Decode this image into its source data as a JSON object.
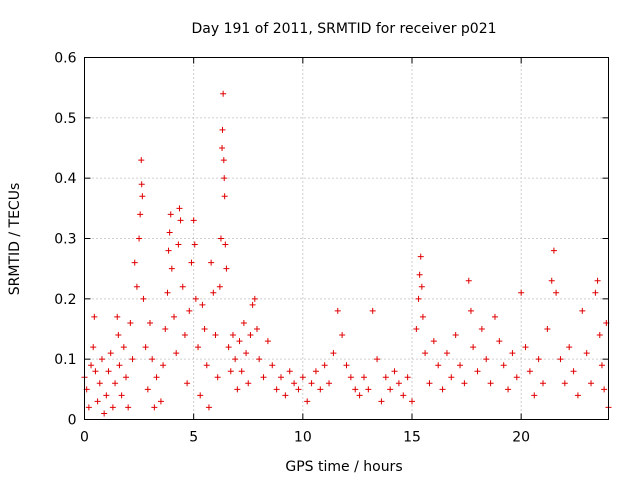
{
  "chart_data": {
    "type": "scatter",
    "title": "Day 191 of 2011, SRMTID for receiver p021",
    "xlabel": "GPS time / hours",
    "ylabel": "SRMTID / TECUs",
    "xlim": [
      0,
      24
    ],
    "ylim": [
      0,
      0.6
    ],
    "xticks": [
      0,
      5,
      10,
      15,
      20
    ],
    "yticks": [
      0,
      0.1,
      0.2,
      0.3,
      0.4,
      0.5,
      0.6
    ],
    "grid": true,
    "marker": "plus",
    "color": "#e00000",
    "series": [
      {
        "name": "SRMTID",
        "points": [
          [
            0.0,
            0.07
          ],
          [
            0.1,
            0.05
          ],
          [
            0.2,
            0.02
          ],
          [
            0.3,
            0.09
          ],
          [
            0.4,
            0.12
          ],
          [
            0.45,
            0.17
          ],
          [
            0.5,
            0.08
          ],
          [
            0.6,
            0.03
          ],
          [
            0.7,
            0.06
          ],
          [
            0.8,
            0.1
          ],
          [
            0.9,
            0.01
          ],
          [
            1.0,
            0.04
          ],
          [
            1.1,
            0.08
          ],
          [
            1.2,
            0.11
          ],
          [
            1.3,
            0.02
          ],
          [
            1.4,
            0.06
          ],
          [
            1.5,
            0.17
          ],
          [
            1.55,
            0.14
          ],
          [
            1.6,
            0.09
          ],
          [
            1.7,
            0.04
          ],
          [
            1.8,
            0.12
          ],
          [
            1.9,
            0.07
          ],
          [
            2.0,
            0.02
          ],
          [
            2.1,
            0.16
          ],
          [
            2.2,
            0.1
          ],
          [
            2.3,
            0.26
          ],
          [
            2.4,
            0.22
          ],
          [
            2.5,
            0.3
          ],
          [
            2.55,
            0.34
          ],
          [
            2.6,
            0.43
          ],
          [
            2.62,
            0.39
          ],
          [
            2.65,
            0.37
          ],
          [
            2.7,
            0.2
          ],
          [
            2.8,
            0.12
          ],
          [
            2.9,
            0.05
          ],
          [
            3.0,
            0.16
          ],
          [
            3.1,
            0.1
          ],
          [
            3.2,
            0.02
          ],
          [
            3.3,
            0.07
          ],
          [
            3.5,
            0.03
          ],
          [
            3.6,
            0.09
          ],
          [
            3.7,
            0.15
          ],
          [
            3.8,
            0.21
          ],
          [
            3.85,
            0.28
          ],
          [
            3.9,
            0.31
          ],
          [
            3.95,
            0.34
          ],
          [
            4.0,
            0.25
          ],
          [
            4.1,
            0.17
          ],
          [
            4.2,
            0.11
          ],
          [
            4.3,
            0.29
          ],
          [
            4.35,
            0.35
          ],
          [
            4.4,
            0.33
          ],
          [
            4.5,
            0.22
          ],
          [
            4.6,
            0.14
          ],
          [
            4.7,
            0.06
          ],
          [
            4.8,
            0.18
          ],
          [
            4.9,
            0.26
          ],
          [
            5.0,
            0.33
          ],
          [
            5.05,
            0.29
          ],
          [
            5.1,
            0.2
          ],
          [
            5.2,
            0.12
          ],
          [
            5.3,
            0.04
          ],
          [
            5.4,
            0.19
          ],
          [
            5.5,
            0.15
          ],
          [
            5.6,
            0.09
          ],
          [
            5.7,
            0.02
          ],
          [
            5.8,
            0.26
          ],
          [
            5.9,
            0.21
          ],
          [
            6.0,
            0.14
          ],
          [
            6.1,
            0.07
          ],
          [
            6.2,
            0.22
          ],
          [
            6.25,
            0.3
          ],
          [
            6.3,
            0.45
          ],
          [
            6.32,
            0.48
          ],
          [
            6.35,
            0.54
          ],
          [
            6.38,
            0.43
          ],
          [
            6.4,
            0.4
          ],
          [
            6.42,
            0.37
          ],
          [
            6.45,
            0.29
          ],
          [
            6.5,
            0.25
          ],
          [
            6.6,
            0.12
          ],
          [
            6.7,
            0.08
          ],
          [
            6.8,
            0.14
          ],
          [
            6.9,
            0.1
          ],
          [
            7.0,
            0.05
          ],
          [
            7.1,
            0.13
          ],
          [
            7.2,
            0.08
          ],
          [
            7.3,
            0.16
          ],
          [
            7.4,
            0.11
          ],
          [
            7.5,
            0.06
          ],
          [
            7.6,
            0.14
          ],
          [
            7.7,
            0.19
          ],
          [
            7.8,
            0.2
          ],
          [
            7.9,
            0.15
          ],
          [
            8.0,
            0.1
          ],
          [
            8.2,
            0.07
          ],
          [
            8.4,
            0.13
          ],
          [
            8.6,
            0.09
          ],
          [
            8.8,
            0.05
          ],
          [
            9.0,
            0.07
          ],
          [
            9.2,
            0.04
          ],
          [
            9.4,
            0.08
          ],
          [
            9.6,
            0.06
          ],
          [
            9.8,
            0.05
          ],
          [
            10.0,
            0.07
          ],
          [
            10.2,
            0.03
          ],
          [
            10.4,
            0.06
          ],
          [
            10.6,
            0.08
          ],
          [
            10.8,
            0.05
          ],
          [
            11.0,
            0.09
          ],
          [
            11.2,
            0.06
          ],
          [
            11.4,
            0.11
          ],
          [
            11.6,
            0.18
          ],
          [
            11.8,
            0.14
          ],
          [
            12.0,
            0.09
          ],
          [
            12.2,
            0.07
          ],
          [
            12.4,
            0.05
          ],
          [
            12.6,
            0.04
          ],
          [
            12.8,
            0.07
          ],
          [
            13.0,
            0.05
          ],
          [
            13.2,
            0.18
          ],
          [
            13.4,
            0.1
          ],
          [
            13.6,
            0.03
          ],
          [
            13.8,
            0.07
          ],
          [
            14.0,
            0.05
          ],
          [
            14.2,
            0.08
          ],
          [
            14.4,
            0.06
          ],
          [
            14.6,
            0.04
          ],
          [
            14.8,
            0.07
          ],
          [
            15.0,
            0.03
          ],
          [
            15.2,
            0.15
          ],
          [
            15.3,
            0.2
          ],
          [
            15.35,
            0.24
          ],
          [
            15.4,
            0.27
          ],
          [
            15.45,
            0.22
          ],
          [
            15.5,
            0.17
          ],
          [
            15.6,
            0.11
          ],
          [
            15.8,
            0.06
          ],
          [
            16.0,
            0.13
          ],
          [
            16.2,
            0.09
          ],
          [
            16.4,
            0.05
          ],
          [
            16.6,
            0.11
          ],
          [
            16.8,
            0.07
          ],
          [
            17.0,
            0.14
          ],
          [
            17.2,
            0.09
          ],
          [
            17.4,
            0.06
          ],
          [
            17.6,
            0.23
          ],
          [
            17.7,
            0.18
          ],
          [
            17.8,
            0.12
          ],
          [
            18.0,
            0.08
          ],
          [
            18.2,
            0.15
          ],
          [
            18.4,
            0.1
          ],
          [
            18.6,
            0.06
          ],
          [
            18.8,
            0.17
          ],
          [
            19.0,
            0.13
          ],
          [
            19.2,
            0.09
          ],
          [
            19.4,
            0.05
          ],
          [
            19.6,
            0.11
          ],
          [
            19.8,
            0.07
          ],
          [
            20.0,
            0.21
          ],
          [
            20.2,
            0.12
          ],
          [
            20.4,
            0.08
          ],
          [
            20.6,
            0.04
          ],
          [
            20.8,
            0.1
          ],
          [
            21.0,
            0.06
          ],
          [
            21.2,
            0.15
          ],
          [
            21.4,
            0.23
          ],
          [
            21.5,
            0.28
          ],
          [
            21.6,
            0.21
          ],
          [
            21.8,
            0.1
          ],
          [
            22.0,
            0.06
          ],
          [
            22.2,
            0.12
          ],
          [
            22.4,
            0.08
          ],
          [
            22.6,
            0.04
          ],
          [
            22.8,
            0.18
          ],
          [
            23.0,
            0.11
          ],
          [
            23.2,
            0.06
          ],
          [
            23.4,
            0.21
          ],
          [
            23.5,
            0.23
          ],
          [
            23.6,
            0.14
          ],
          [
            23.7,
            0.09
          ],
          [
            23.8,
            0.05
          ],
          [
            23.9,
            0.16
          ],
          [
            24.0,
            0.02
          ]
        ]
      }
    ]
  }
}
